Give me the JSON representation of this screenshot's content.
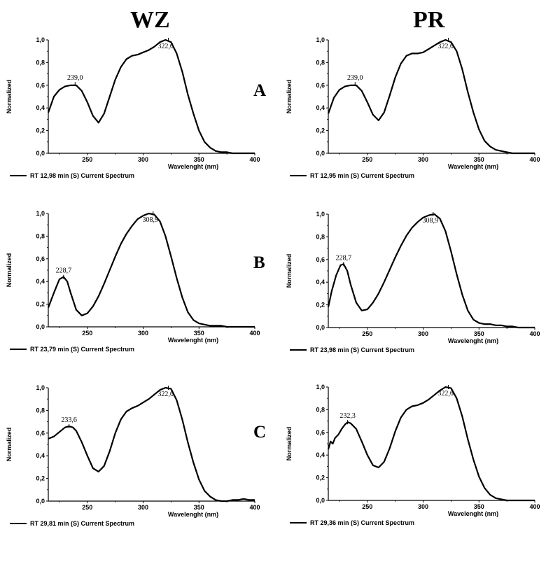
{
  "headers": {
    "wz": "WZ",
    "pr": "PR"
  },
  "row_labels": {
    "a": "A",
    "b": "B",
    "c": "C"
  },
  "chart_data": [
    {
      "id": "A-WZ",
      "type": "line",
      "column": "WZ",
      "row": "A",
      "xlabel": "Wavelenght (nm)",
      "ylabel": "Normalized",
      "xlim": [
        215,
        400
      ],
      "ylim": [
        0,
        1.0
      ],
      "xticks": [
        250,
        300,
        350,
        400
      ],
      "xtick_labels": [
        "250",
        "300",
        "350",
        "400"
      ],
      "yticks": [
        0,
        0.2,
        0.4,
        0.6,
        0.8,
        1.0
      ],
      "ytick_labels": [
        "0,0",
        "0,2",
        "0,4",
        "0,6",
        "0,8",
        "1,0"
      ],
      "legend": "RT 12,98  min (S) Current Spectrum",
      "peaks": [
        {
          "x": 239.0,
          "y": 0.61,
          "label": "239,0"
        },
        {
          "x": 322.6,
          "y": 1.0,
          "label": "322,6"
        }
      ],
      "series": [
        {
          "x": [
            215,
            220,
            225,
            230,
            235,
            240,
            245,
            250,
            255,
            260,
            265,
            270,
            275,
            280,
            285,
            290,
            295,
            300,
            305,
            310,
            315,
            320,
            325,
            330,
            335,
            340,
            345,
            350,
            355,
            360,
            365,
            370,
            375,
            380,
            385,
            390,
            395,
            400
          ],
          "y": [
            0.36,
            0.5,
            0.56,
            0.59,
            0.6,
            0.6,
            0.55,
            0.45,
            0.33,
            0.27,
            0.35,
            0.5,
            0.65,
            0.76,
            0.83,
            0.86,
            0.87,
            0.89,
            0.91,
            0.94,
            0.98,
            1.0,
            0.98,
            0.88,
            0.72,
            0.52,
            0.35,
            0.2,
            0.1,
            0.05,
            0.02,
            0.01,
            0.01,
            0.0,
            0.0,
            0.0,
            0.0,
            0.0
          ]
        }
      ]
    },
    {
      "id": "A-PR",
      "type": "line",
      "column": "PR",
      "row": "A",
      "xlabel": "Wavelenght (nm)",
      "ylabel": "Normalized",
      "xlim": [
        215,
        400
      ],
      "ylim": [
        0,
        1.0
      ],
      "xticks": [
        250,
        300,
        350,
        400
      ],
      "xtick_labels": [
        "250",
        "300",
        "350",
        "400"
      ],
      "yticks": [
        0,
        0.2,
        0.4,
        0.6,
        0.8,
        1.0
      ],
      "ytick_labels": [
        "0,0",
        "0,2",
        "0,4",
        "0,6",
        "0,8",
        "1,0"
      ],
      "legend": "RT  12,95  min (S) Current Spectrum",
      "peaks": [
        {
          "x": 239.0,
          "y": 0.61,
          "label": "239,0"
        },
        {
          "x": 322.6,
          "y": 1.0,
          "label": "322,6"
        }
      ],
      "series": [
        {
          "x": [
            215,
            220,
            225,
            230,
            235,
            240,
            245,
            250,
            255,
            260,
            265,
            270,
            275,
            280,
            285,
            290,
            295,
            300,
            305,
            310,
            315,
            320,
            325,
            330,
            335,
            340,
            345,
            350,
            355,
            360,
            365,
            370,
            375,
            380,
            385,
            390,
            395,
            400
          ],
          "y": [
            0.35,
            0.49,
            0.56,
            0.59,
            0.6,
            0.6,
            0.55,
            0.45,
            0.34,
            0.29,
            0.36,
            0.51,
            0.67,
            0.79,
            0.86,
            0.88,
            0.88,
            0.89,
            0.92,
            0.95,
            0.98,
            1.0,
            0.98,
            0.9,
            0.74,
            0.54,
            0.36,
            0.21,
            0.11,
            0.06,
            0.03,
            0.02,
            0.01,
            0.0,
            0.0,
            0.0,
            0.0,
            0.0
          ]
        }
      ]
    },
    {
      "id": "B-WZ",
      "type": "line",
      "column": "WZ",
      "row": "B",
      "xlabel": "Wavelenght (nm)",
      "ylabel": "Normalized",
      "xlim": [
        215,
        400
      ],
      "ylim": [
        0,
        1.0
      ],
      "xticks": [
        250,
        300,
        350,
        400
      ],
      "xtick_labels": [
        "250",
        "300",
        "350",
        "400"
      ],
      "yticks": [
        0,
        0.2,
        0.4,
        0.6,
        0.8,
        1.0
      ],
      "ytick_labels": [
        "0,0",
        "0,2",
        "0,4",
        "0,6",
        "0,8",
        "1,0"
      ],
      "legend": "RT 23,79  min (S) Current Spectrum",
      "peaks": [
        {
          "x": 228.7,
          "y": 0.44,
          "label": "228,7"
        },
        {
          "x": 308.9,
          "y": 1.0,
          "label": "308,9"
        }
      ],
      "series": [
        {
          "x": [
            215,
            220,
            225,
            228.7,
            232,
            235,
            240,
            245,
            250,
            255,
            260,
            265,
            270,
            275,
            280,
            285,
            290,
            295,
            300,
            305,
            310,
            315,
            320,
            325,
            330,
            335,
            340,
            345,
            350,
            355,
            360,
            365,
            370,
            375,
            380,
            385,
            390,
            395,
            400
          ],
          "y": [
            0.17,
            0.3,
            0.42,
            0.44,
            0.4,
            0.3,
            0.15,
            0.1,
            0.12,
            0.18,
            0.27,
            0.38,
            0.5,
            0.62,
            0.73,
            0.82,
            0.89,
            0.95,
            0.98,
            1.0,
            0.99,
            0.93,
            0.8,
            0.62,
            0.43,
            0.26,
            0.13,
            0.06,
            0.03,
            0.02,
            0.01,
            0.01,
            0.01,
            0.0,
            0.0,
            0.0,
            0.0,
            0.0,
            0.0
          ]
        }
      ]
    },
    {
      "id": "B-PR",
      "type": "line",
      "column": "PR",
      "row": "B",
      "xlabel": "Wavelenght (nm)",
      "ylabel": "Normalized",
      "xlim": [
        215,
        400
      ],
      "ylim": [
        0,
        1.0
      ],
      "xticks": [
        250,
        300,
        350,
        400
      ],
      "xtick_labels": [
        "250",
        "300",
        "350",
        "400"
      ],
      "yticks": [
        0,
        0.2,
        0.4,
        0.6,
        0.8,
        1.0
      ],
      "ytick_labels": [
        "0,0",
        "0,2",
        "0,4",
        "0,6",
        "0,8",
        "1,0"
      ],
      "legend": "RT  23,98  min (S) Current Spectrum",
      "peaks": [
        {
          "x": 228.7,
          "y": 0.56,
          "label": "228,7"
        },
        {
          "x": 308.9,
          "y": 1.0,
          "label": "308,9"
        }
      ],
      "series": [
        {
          "x": [
            215,
            218,
            222,
            226,
            228.7,
            232,
            235,
            240,
            245,
            250,
            255,
            260,
            265,
            270,
            275,
            280,
            285,
            290,
            295,
            300,
            305,
            310,
            315,
            320,
            325,
            330,
            335,
            340,
            345,
            350,
            355,
            360,
            365,
            370,
            375,
            380,
            385,
            390,
            395,
            400
          ],
          "y": [
            0.18,
            0.32,
            0.46,
            0.55,
            0.56,
            0.5,
            0.38,
            0.22,
            0.15,
            0.16,
            0.22,
            0.3,
            0.4,
            0.51,
            0.62,
            0.72,
            0.81,
            0.88,
            0.93,
            0.97,
            0.99,
            1.0,
            0.96,
            0.85,
            0.67,
            0.47,
            0.29,
            0.15,
            0.07,
            0.04,
            0.03,
            0.03,
            0.02,
            0.02,
            0.01,
            0.01,
            0.0,
            0.0,
            0.0,
            0.0
          ]
        }
      ]
    },
    {
      "id": "C-WZ",
      "type": "line",
      "column": "WZ",
      "row": "C",
      "xlabel": "Wavelenght (nm)",
      "ylabel": "Normalized",
      "xlim": [
        215,
        400
      ],
      "ylim": [
        0,
        1.0
      ],
      "xticks": [
        250,
        300,
        350,
        400
      ],
      "xtick_labels": [
        "250",
        "300",
        "350",
        "400"
      ],
      "yticks": [
        0,
        0.2,
        0.4,
        0.6,
        0.8,
        1.0
      ],
      "ytick_labels": [
        "0,0",
        "0,2",
        "0,4",
        "0,6",
        "0,8",
        "1,0"
      ],
      "legend": "RT 29,81  min (S) Current Spectrum",
      "peaks": [
        {
          "x": 233.6,
          "y": 0.66,
          "label": "233,6"
        },
        {
          "x": 322.6,
          "y": 1.0,
          "label": "322,6"
        }
      ],
      "series": [
        {
          "x": [
            215,
            220,
            225,
            230,
            233.6,
            237,
            240,
            245,
            250,
            255,
            260,
            265,
            270,
            275,
            280,
            285,
            290,
            295,
            300,
            305,
            310,
            315,
            320,
            325,
            330,
            335,
            340,
            345,
            350,
            355,
            360,
            365,
            370,
            375,
            380,
            385,
            390,
            395,
            400
          ],
          "y": [
            0.55,
            0.57,
            0.61,
            0.65,
            0.66,
            0.65,
            0.62,
            0.52,
            0.4,
            0.29,
            0.26,
            0.31,
            0.44,
            0.6,
            0.72,
            0.79,
            0.82,
            0.84,
            0.87,
            0.9,
            0.94,
            0.98,
            1.0,
            0.99,
            0.89,
            0.72,
            0.52,
            0.34,
            0.19,
            0.09,
            0.04,
            0.01,
            0.0,
            0.0,
            0.01,
            0.01,
            0.02,
            0.01,
            0.01
          ]
        }
      ]
    },
    {
      "id": "C-PR",
      "type": "line",
      "column": "PR",
      "row": "C",
      "xlabel": "Wavelenght (nm)",
      "ylabel": "Normalized",
      "xlim": [
        215,
        400
      ],
      "ylim": [
        0,
        1.0
      ],
      "xticks": [
        250,
        300,
        350,
        400
      ],
      "xtick_labels": [
        "250",
        "300",
        "350",
        "400"
      ],
      "yticks": [
        0,
        0.2,
        0.4,
        0.6,
        0.8,
        1.0
      ],
      "ytick_labels": [
        "0,0",
        "0,2",
        "0,4",
        "0,6",
        "0,8",
        "1,0"
      ],
      "legend": "RT  29,36  min (S) Current Spectrum",
      "peaks": [
        {
          "x": 232.3,
          "y": 0.69,
          "label": "232,3"
        },
        {
          "x": 322.6,
          "y": 1.0,
          "label": "322,6"
        }
      ],
      "series": [
        {
          "x": [
            215,
            217,
            219,
            221,
            224,
            227,
            230,
            232.3,
            235,
            240,
            245,
            250,
            255,
            260,
            265,
            270,
            275,
            280,
            285,
            290,
            295,
            300,
            305,
            310,
            315,
            320,
            325,
            330,
            335,
            340,
            345,
            350,
            355,
            360,
            365,
            370,
            375,
            380,
            385,
            390,
            395,
            400
          ],
          "y": [
            0.45,
            0.52,
            0.5,
            0.55,
            0.58,
            0.63,
            0.67,
            0.69,
            0.68,
            0.63,
            0.52,
            0.4,
            0.31,
            0.29,
            0.34,
            0.46,
            0.61,
            0.73,
            0.8,
            0.83,
            0.84,
            0.86,
            0.89,
            0.93,
            0.97,
            1.0,
            0.99,
            0.9,
            0.74,
            0.54,
            0.36,
            0.21,
            0.11,
            0.05,
            0.02,
            0.01,
            0.0,
            0.0,
            0.0,
            0.0,
            0.0,
            0.0
          ]
        }
      ]
    }
  ]
}
